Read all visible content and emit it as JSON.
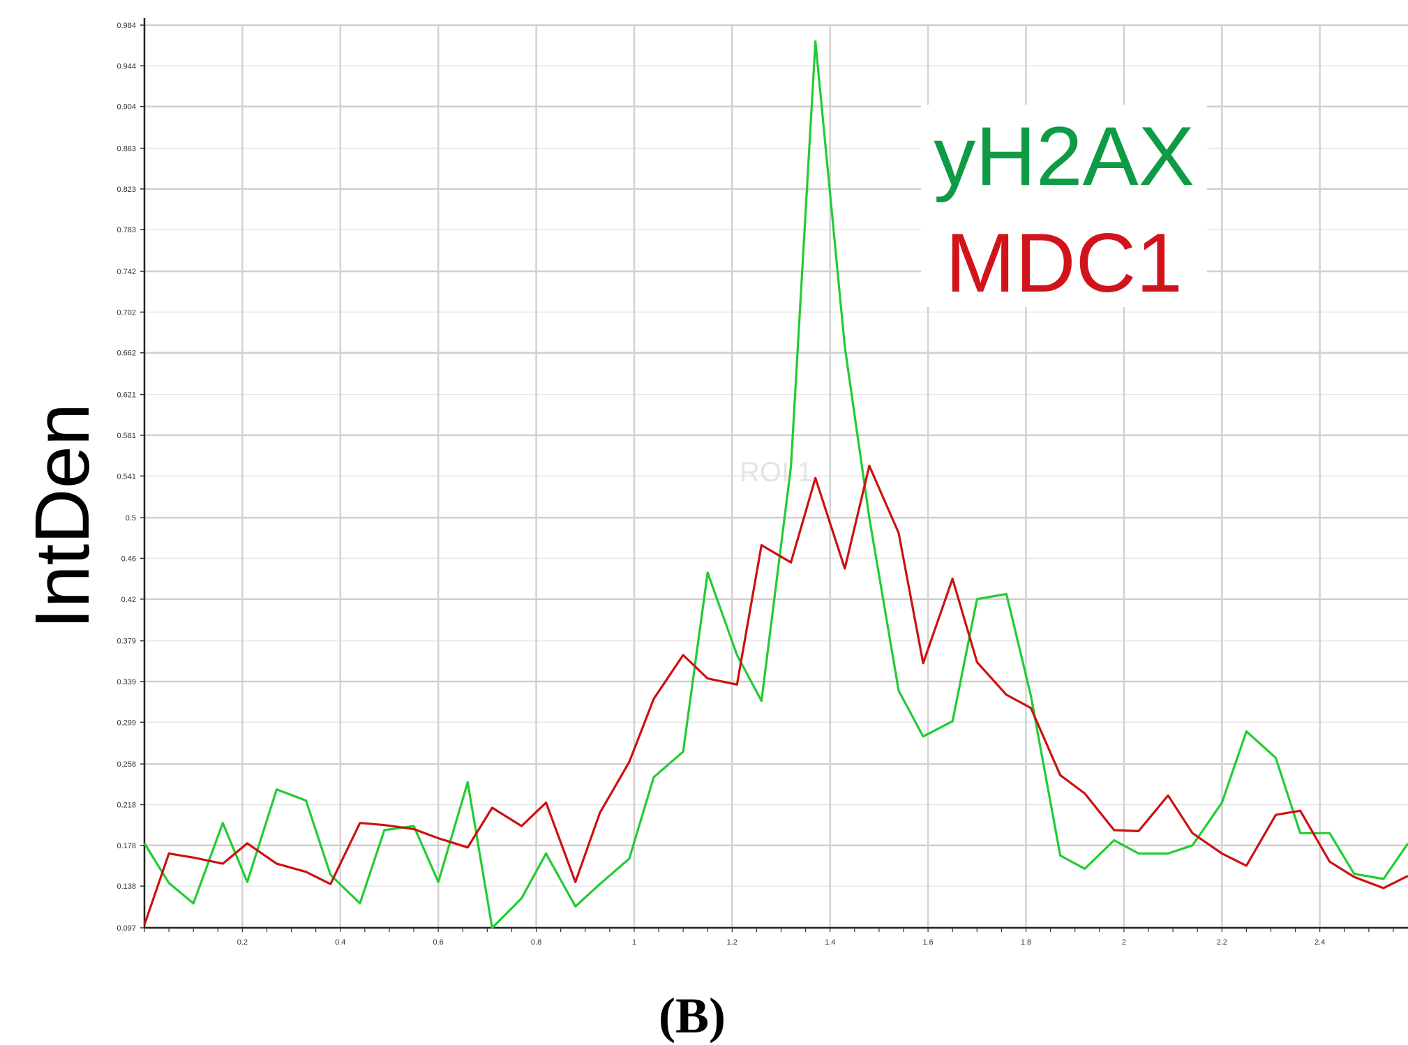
{
  "chart_data": {
    "type": "line",
    "title": "",
    "xlabel": "",
    "ylabel": "IntDen",
    "xlim": [
      0,
      2.58
    ],
    "ylim": [
      0.097,
      0.984
    ],
    "x_ticks": [
      "0.2",
      "0.4",
      "0.6",
      "0.8",
      "1",
      "1.2",
      "1.4",
      "1.6",
      "1.8",
      "2",
      "2.2",
      "2.4"
    ],
    "y_ticks": [
      "0.097",
      "0.138",
      "0.178",
      "0.218",
      "0.258",
      "0.299",
      "0.339",
      "0.379",
      "0.42",
      "0.46",
      "0.5",
      "0.541",
      "0.581",
      "0.621",
      "0.662",
      "0.702",
      "0.742",
      "0.783",
      "0.823",
      "0.863",
      "0.904",
      "0.944",
      "0.984"
    ],
    "grid": true,
    "legend_position": "top-right",
    "annotation": "ROI 1",
    "panel_label": "(B)",
    "series": [
      {
        "name": "yH2AX",
        "color": "#22cc33",
        "x": [
          0,
          0.05,
          0.1,
          0.16,
          0.21,
          0.27,
          0.33,
          0.38,
          0.44,
          0.49,
          0.55,
          0.6,
          0.66,
          0.71,
          0.77,
          0.82,
          0.88,
          0.93,
          0.99,
          1.04,
          1.1,
          1.15,
          1.21,
          1.26,
          1.32,
          1.37,
          1.43,
          1.48,
          1.54,
          1.59,
          1.65,
          1.7,
          1.76,
          1.81,
          1.87,
          1.92,
          1.98,
          2.03,
          2.09,
          2.14,
          2.2,
          2.25,
          2.31,
          2.36,
          2.42,
          2.47,
          2.53,
          2.58
        ],
        "values": [
          0.18,
          0.141,
          0.121,
          0.2,
          0.142,
          0.233,
          0.222,
          0.149,
          0.121,
          0.193,
          0.197,
          0.142,
          0.24,
          0.097,
          0.126,
          0.17,
          0.118,
          0.14,
          0.165,
          0.245,
          0.27,
          0.446,
          0.365,
          0.32,
          0.55,
          0.968,
          0.668,
          0.5,
          0.33,
          0.285,
          0.3,
          0.42,
          0.425,
          0.325,
          0.168,
          0.155,
          0.183,
          0.17,
          0.17,
          0.178,
          0.22,
          0.29,
          0.264,
          0.19,
          0.19,
          0.15,
          0.145,
          0.18
        ]
      },
      {
        "name": "MDC1",
        "color": "#cc1111",
        "x": [
          0,
          0.05,
          0.1,
          0.16,
          0.21,
          0.27,
          0.33,
          0.38,
          0.44,
          0.49,
          0.55,
          0.6,
          0.66,
          0.71,
          0.77,
          0.82,
          0.88,
          0.93,
          0.99,
          1.04,
          1.1,
          1.15,
          1.21,
          1.26,
          1.32,
          1.37,
          1.43,
          1.48,
          1.54,
          1.59,
          1.65,
          1.7,
          1.76,
          1.81,
          1.87,
          1.92,
          1.98,
          2.03,
          2.09,
          2.14,
          2.2,
          2.25,
          2.31,
          2.36,
          2.42,
          2.47,
          2.53,
          2.58
        ],
        "values": [
          0.1,
          0.17,
          0.166,
          0.16,
          0.18,
          0.16,
          0.152,
          0.14,
          0.2,
          0.198,
          0.194,
          0.185,
          0.176,
          0.215,
          0.197,
          0.22,
          0.142,
          0.21,
          0.26,
          0.322,
          0.365,
          0.342,
          0.336,
          0.473,
          0.456,
          0.539,
          0.45,
          0.551,
          0.485,
          0.357,
          0.44,
          0.358,
          0.326,
          0.313,
          0.247,
          0.229,
          0.193,
          0.192,
          0.227,
          0.19,
          0.17,
          0.158,
          0.208,
          0.212,
          0.162,
          0.147,
          0.136,
          0.148
        ]
      }
    ]
  }
}
